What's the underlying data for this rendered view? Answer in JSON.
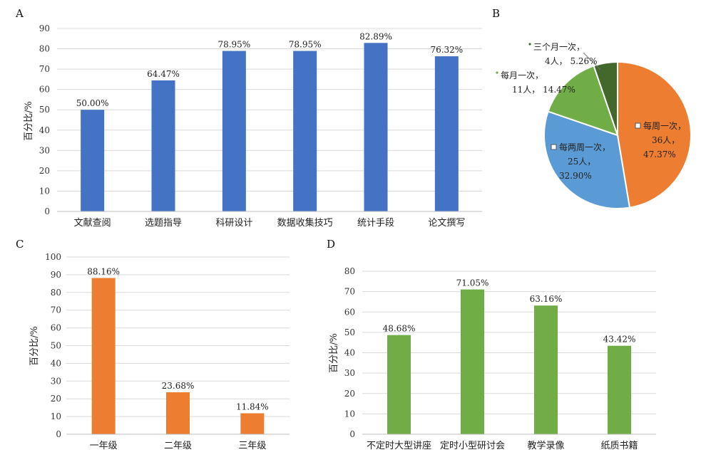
{
  "chart_data": [
    {
      "panel": "A",
      "type": "bar",
      "ylabel": "百分比/%",
      "ylim": [
        0,
        90
      ],
      "yticks": [
        0,
        10,
        20,
        30,
        40,
        50,
        60,
        70,
        80,
        90
      ],
      "categories": [
        "文献查阅",
        "选题指导",
        "科研设计",
        "数据收集技巧",
        "统计手段",
        "论文撰写"
      ],
      "values": [
        50.0,
        64.47,
        78.95,
        78.95,
        82.89,
        76.32
      ],
      "value_labels": [
        "50.00%",
        "64.47%",
        "78.95%",
        "78.95%",
        "82.89%",
        "76.32%"
      ],
      "color": "#4472C4",
      "grid": true
    },
    {
      "panel": "B",
      "type": "pie",
      "slices": [
        {
          "label": "每周一次，",
          "count": "36人，",
          "percent": "47.37%",
          "value": 47.37,
          "color": "#ED7D31"
        },
        {
          "label": "每两周一次，",
          "count": "25人，",
          "percent": "32.90%",
          "value": 32.9,
          "color": "#5B9BD5"
        },
        {
          "label": "每月一次，",
          "count": "11人，",
          "percent": "14.47%",
          "value": 14.47,
          "color": "#70AD47"
        },
        {
          "label": "三个月一次，",
          "count": "4人，",
          "percent": "5.26%",
          "value": 5.26,
          "color": "#43682B"
        }
      ]
    },
    {
      "panel": "C",
      "type": "bar",
      "ylabel": "百分比/%",
      "ylim": [
        0,
        100
      ],
      "yticks": [
        0,
        10,
        20,
        30,
        40,
        50,
        60,
        70,
        80,
        90,
        100
      ],
      "categories": [
        "一年级",
        "二年级",
        "三年级"
      ],
      "values": [
        88.16,
        23.68,
        11.84
      ],
      "value_labels": [
        "88.16%",
        "23.68%",
        "11.84%"
      ],
      "color": "#ED7D31",
      "grid": true
    },
    {
      "panel": "D",
      "type": "bar",
      "ylabel": "百分比/%",
      "ylim": [
        0,
        80
      ],
      "yticks": [
        0,
        10,
        20,
        30,
        40,
        50,
        60,
        70,
        80
      ],
      "categories": [
        "不定时大型讲座",
        "定时小型研讨会",
        "教学录像",
        "纸质书籍"
      ],
      "values": [
        48.68,
        71.05,
        63.16,
        43.42
      ],
      "value_labels": [
        "48.68%",
        "71.05%",
        "63.16%",
        "43.42%"
      ],
      "color": "#70AD47",
      "grid": true
    }
  ]
}
